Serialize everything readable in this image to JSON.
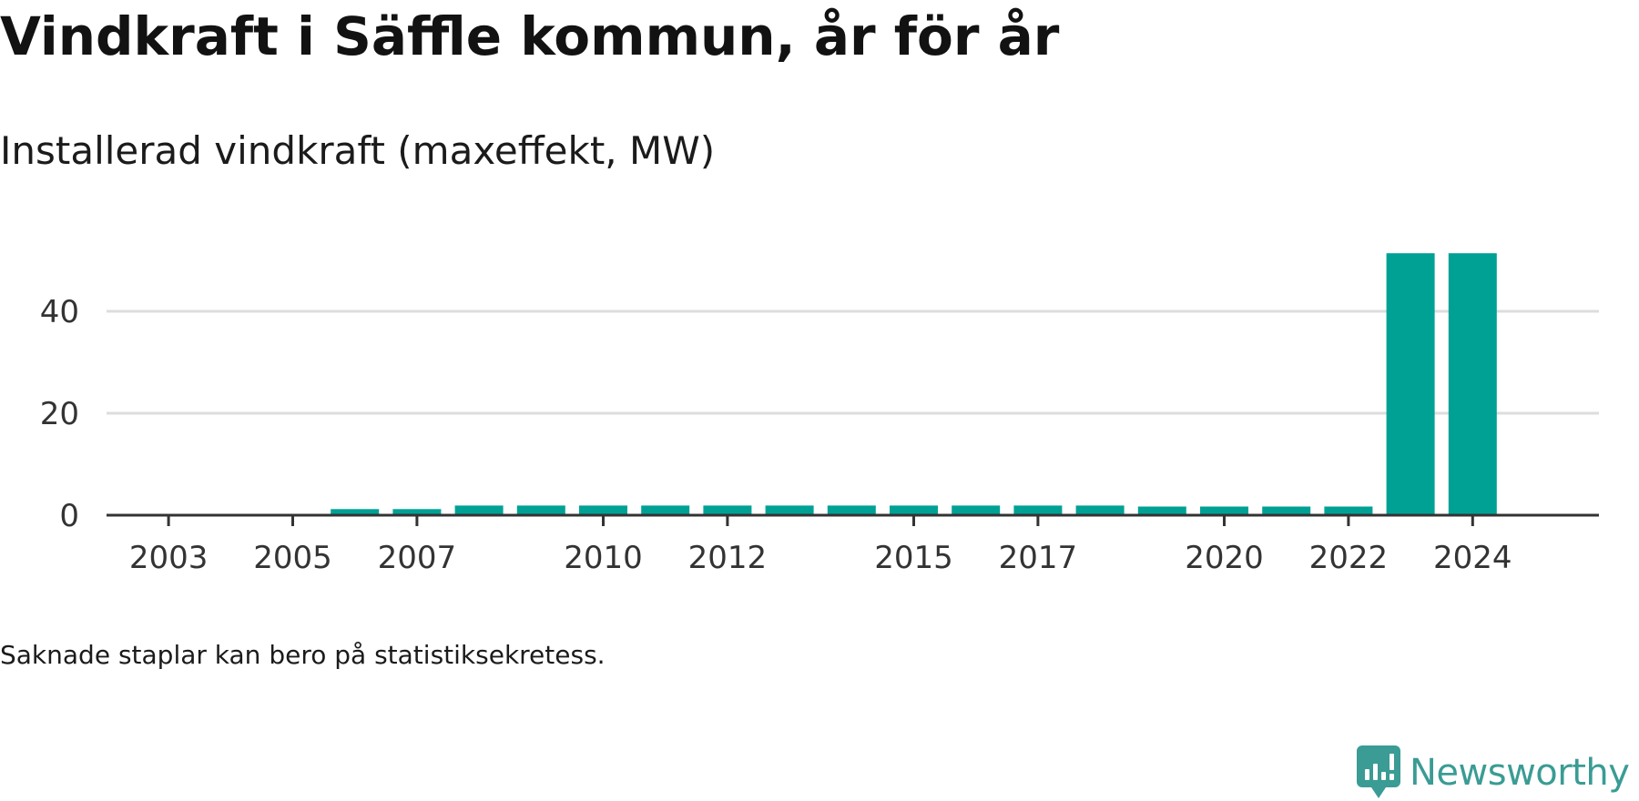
{
  "title": "Vindkraft i Säffle kommun, år för år",
  "subtitle": "Installerad vindkraft (maxeffekt, MW)",
  "footnote": "Saknade staplar kan bero på statistiksekretess.",
  "brand": {
    "name": "Newsworthy",
    "icon": "newsworthy-logo-icon",
    "color": "#3a9c94"
  },
  "chart_data": {
    "type": "bar",
    "title": "Installerad vindkraft (maxeffekt, MW)",
    "xlabel": "",
    "ylabel": "",
    "categories": [
      2003,
      2004,
      2005,
      2006,
      2007,
      2008,
      2009,
      2010,
      2011,
      2012,
      2013,
      2014,
      2015,
      2016,
      2017,
      2018,
      2019,
      2020,
      2021,
      2022,
      2023,
      2024
    ],
    "values": [
      0,
      0,
      0,
      1.2,
      1.2,
      1.9,
      1.9,
      1.9,
      1.9,
      1.9,
      1.9,
      1.9,
      1.9,
      1.9,
      1.9,
      1.9,
      1.7,
      1.7,
      1.7,
      1.7,
      51.4,
      51.4
    ],
    "x_tick_labels": [
      "2003",
      "2005",
      "2007",
      "2010",
      "2012",
      "2015",
      "2017",
      "2020",
      "2022",
      "2024"
    ],
    "y_ticks": [
      0,
      20,
      40
    ],
    "ylim": [
      0,
      55
    ],
    "grid": true,
    "bar_color": "#00a195",
    "grid_color": "#dddddd",
    "axis_color": "#333333"
  }
}
